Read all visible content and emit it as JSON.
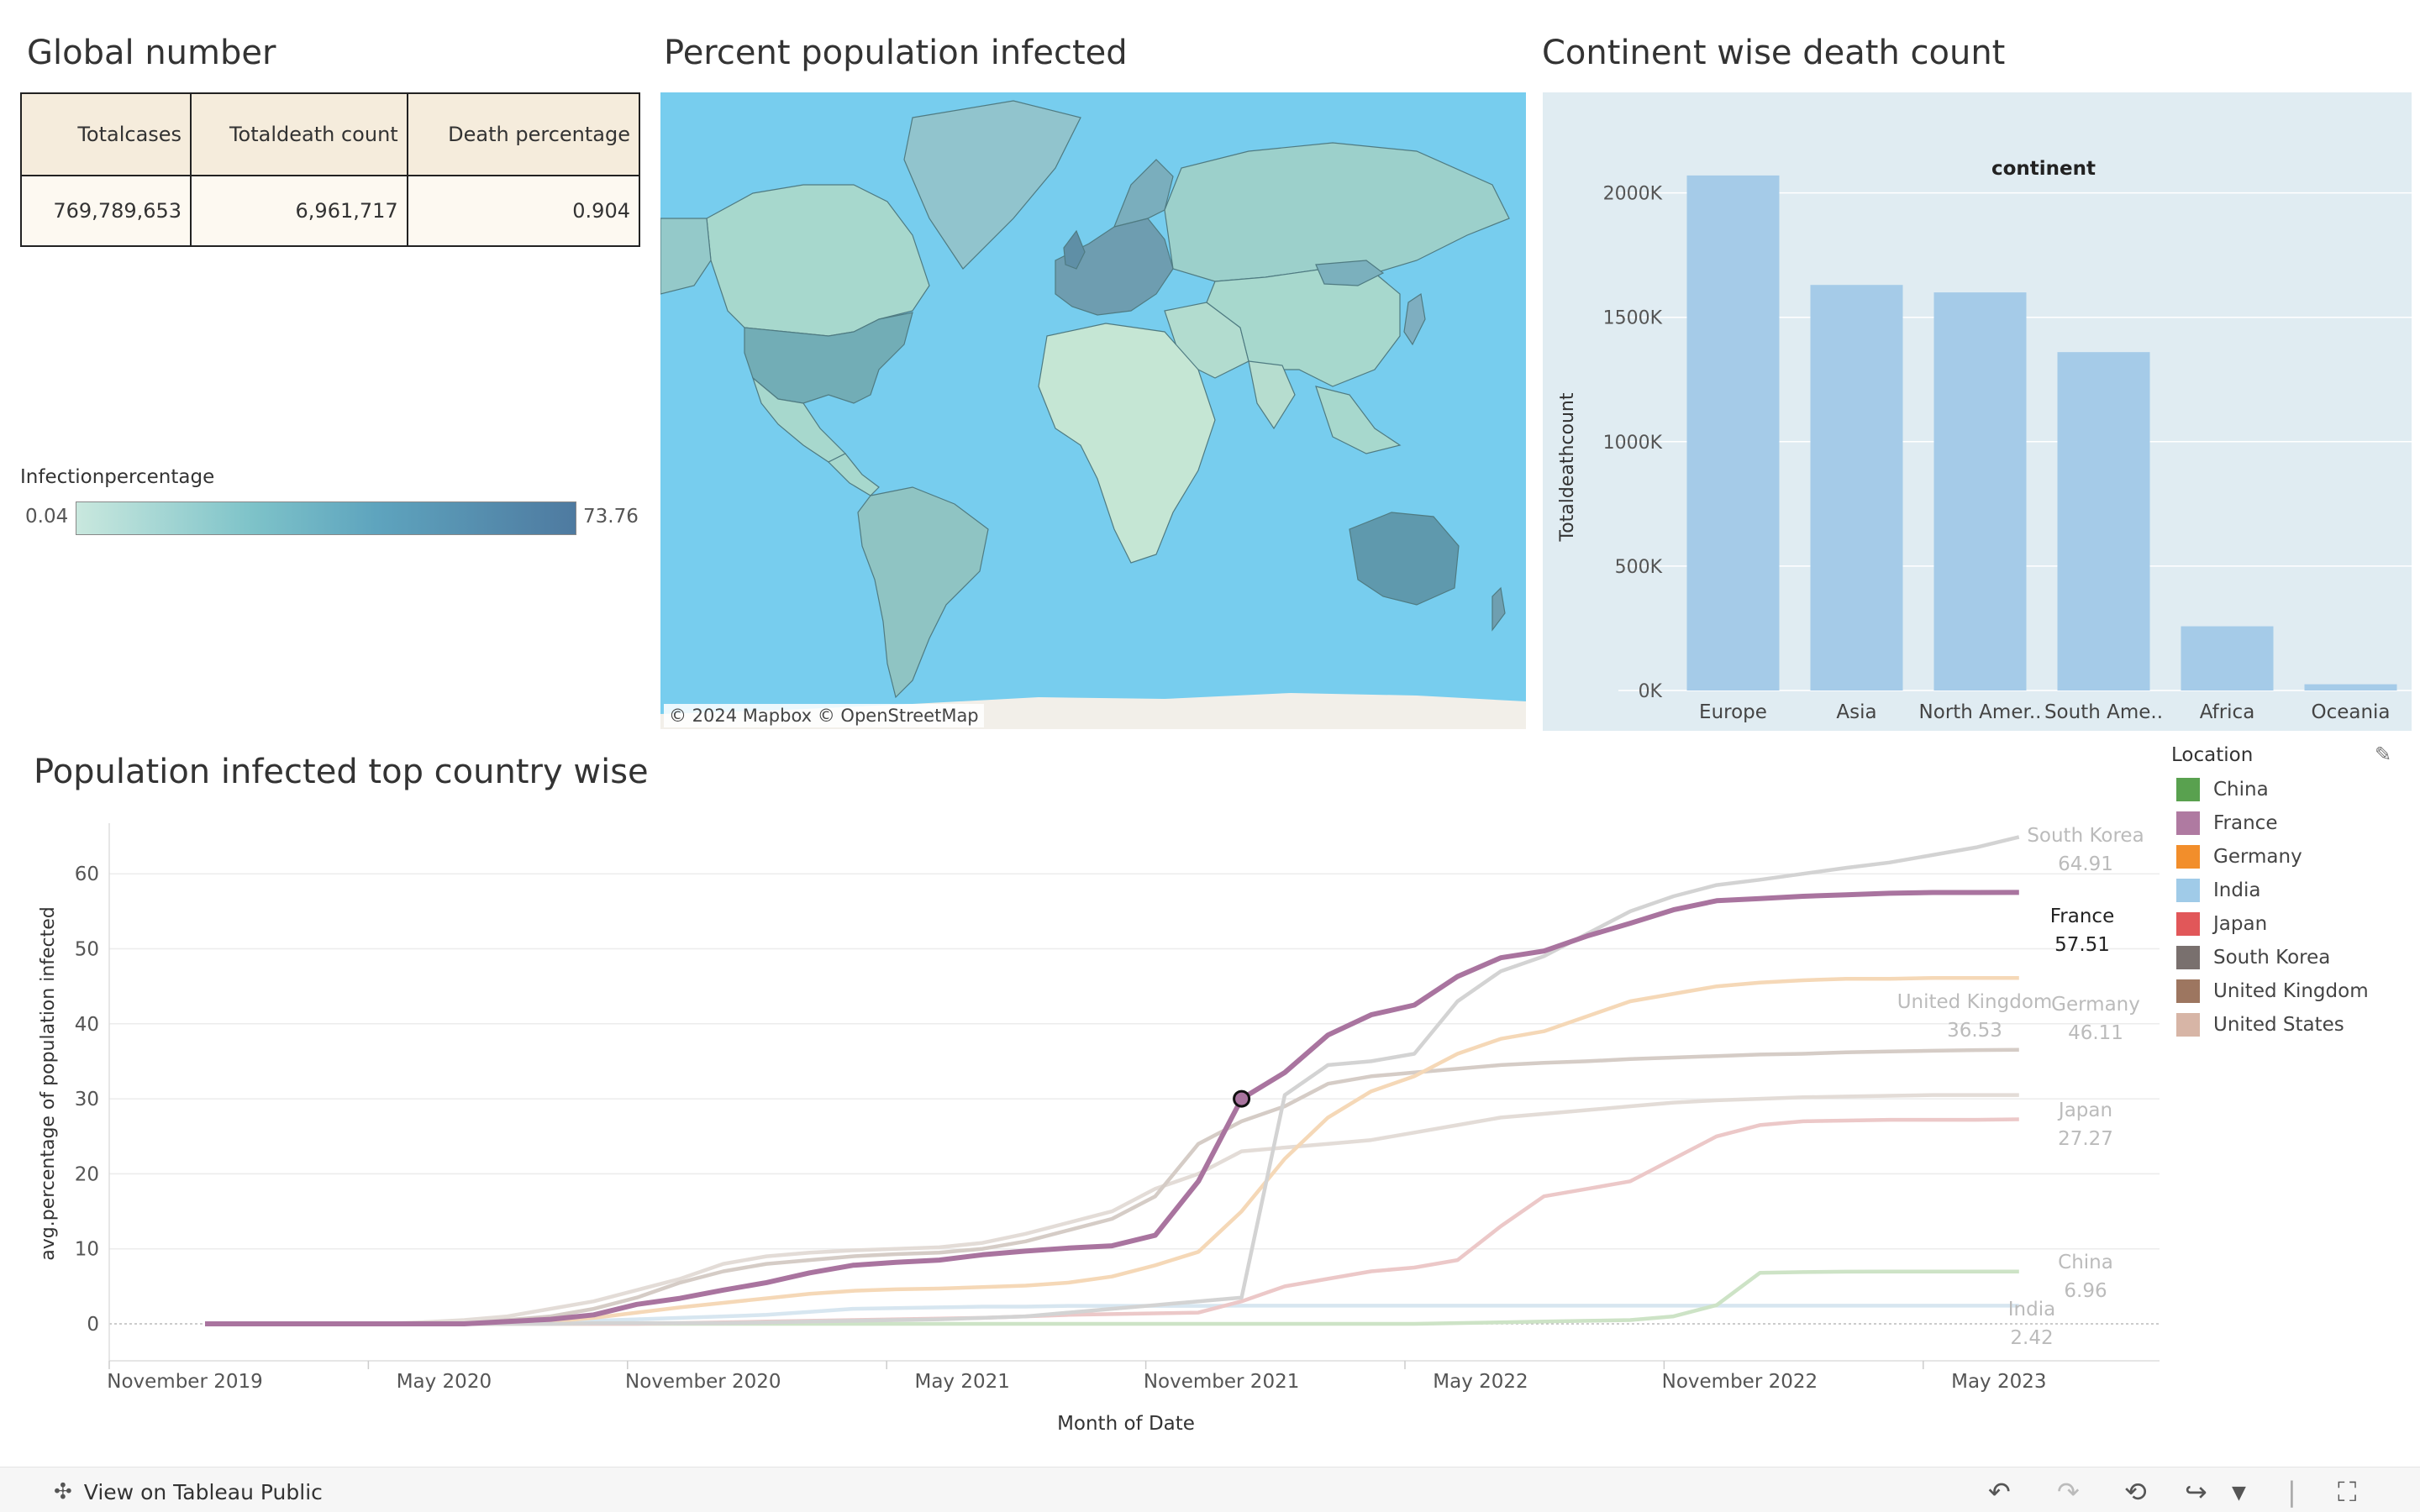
{
  "titles": {
    "global": "Global number",
    "map": "Percent population infected",
    "continent": "Continent wise death count",
    "line": "Population infected top country wise"
  },
  "global_table": {
    "headers": [
      "Totalcases",
      "Totaldeath count",
      "Death percentage"
    ],
    "values": [
      "769,789,653",
      "6,961,717",
      "0.904"
    ]
  },
  "infection_legend": {
    "title": "Infectionpercentage",
    "min": "0.04",
    "max": "73.76"
  },
  "map_attribution": "© 2024 Mapbox  © OpenStreetMap",
  "colors": {
    "ocean": "#77cdee",
    "land": "#a6d6cc",
    "bar": "#a5cbe8",
    "bar_bg": "#e0ecf2",
    "france": "#a9749f"
  },
  "chart_data": [
    {
      "type": "bar",
      "title": "continent",
      "ylabel": "Totaldeathcount",
      "categories": [
        "Europe",
        "Asia",
        "North Amer..",
        "South Ame..",
        "Africa",
        "Oceania"
      ],
      "values": [
        2070000,
        1630000,
        1600000,
        1360000,
        258000,
        25000
      ],
      "yticks": [
        "0K",
        "500K",
        "1000K",
        "1500K",
        "2000K"
      ],
      "ylim": [
        0,
        2100000
      ],
      "grid": true
    },
    {
      "type": "line",
      "xlabel": "Month of Date",
      "ylabel": "avg.percentage of population infected",
      "xticks": [
        "November 2019",
        "May 2020",
        "November 2020",
        "May 2021",
        "November 2021",
        "May 2022",
        "November 2022",
        "May 2023"
      ],
      "yticks": [
        "0",
        "10",
        "20",
        "30",
        "40",
        "50",
        "60"
      ],
      "ylim": [
        0,
        66
      ],
      "x_months": [
        0,
        1,
        2,
        3,
        4,
        5,
        6,
        7,
        8,
        9,
        10,
        11,
        12,
        13,
        14,
        15,
        16,
        17,
        18,
        19,
        20,
        21,
        22,
        23,
        24,
        25,
        26,
        27,
        28,
        29,
        30,
        31,
        32,
        33,
        34,
        35,
        36,
        37,
        38,
        39,
        40,
        41,
        42
      ],
      "series": [
        {
          "name": "France",
          "label": "France",
          "value_label": "57.51",
          "color": "#a9749f",
          "highlighted": true,
          "values": [
            0,
            0,
            0,
            0,
            0,
            0,
            0,
            0.3,
            0.6,
            1.2,
            2.6,
            3.4,
            4.5,
            5.5,
            6.8,
            7.8,
            8.2,
            8.5,
            9.2,
            9.7,
            10.1,
            10.4,
            11.8,
            19,
            30,
            33.5,
            38.5,
            41.2,
            42.5,
            46.3,
            48.8,
            49.7,
            51.7,
            53.4,
            55.2,
            56.4,
            56.7,
            57,
            57.2,
            57.4,
            57.5,
            57.5,
            57.51
          ]
        },
        {
          "name": "South Korea",
          "label": "South Korea",
          "value_label": "64.91",
          "color": "#d3d3d3",
          "values": [
            0,
            0,
            0,
            0,
            0,
            0,
            0,
            0,
            0,
            0.1,
            0.1,
            0.1,
            0.1,
            0.2,
            0.3,
            0.4,
            0.5,
            0.6,
            0.8,
            1,
            1.5,
            2,
            2.5,
            3,
            3.5,
            30.5,
            34.5,
            35,
            36,
            43,
            47,
            49,
            52,
            55,
            57,
            58.5,
            59.2,
            60,
            60.8,
            61.5,
            62.5,
            63.5,
            64.91
          ]
        },
        {
          "name": "Germany",
          "label": "Germany",
          "value_label": "46.11",
          "color": "#f5d8b7",
          "values": [
            0,
            0,
            0,
            0,
            0,
            0,
            0,
            0.1,
            0.3,
            0.8,
            1.5,
            2.2,
            2.8,
            3.4,
            4,
            4.4,
            4.6,
            4.7,
            4.9,
            5.1,
            5.5,
            6.3,
            7.8,
            9.6,
            15,
            22,
            27.5,
            31,
            33,
            36,
            38,
            39,
            41,
            43,
            44,
            45,
            45.5,
            45.8,
            46,
            46,
            46.1,
            46.1,
            46.11
          ]
        },
        {
          "name": "United Kingdom",
          "label": "United Kingdom",
          "value_label": "36.53",
          "color": "#d5ccc6",
          "values": [
            0,
            0,
            0,
            0,
            0,
            0,
            0,
            0.5,
            1,
            2,
            3.5,
            5.5,
            7,
            8,
            8.5,
            9,
            9.3,
            9.5,
            10,
            11,
            12.5,
            14,
            17,
            24,
            27,
            29,
            32,
            33,
            33.5,
            34,
            34.5,
            34.8,
            35,
            35.3,
            35.5,
            35.7,
            35.9,
            36,
            36.2,
            36.3,
            36.4,
            36.5,
            36.53
          ]
        },
        {
          "name": "United States",
          "label": "",
          "value_label": "",
          "color": "#e3dcd7",
          "values": [
            0,
            0,
            0,
            0,
            0,
            0.2,
            0.5,
            1,
            2,
            3,
            4.5,
            6,
            8,
            9,
            9.5,
            9.8,
            10,
            10.2,
            10.8,
            12,
            13.5,
            15,
            18,
            20,
            23,
            23.5,
            24,
            24.5,
            25.5,
            26.5,
            27.5,
            28,
            28.5,
            29,
            29.5,
            29.8,
            30,
            30.2,
            30.3,
            30.4,
            30.5,
            30.5,
            30.5
          ]
        },
        {
          "name": "Japan",
          "label": "Japan",
          "value_label": "27.27",
          "color": "#ecc8c8",
          "values": [
            0,
            0,
            0,
            0,
            0,
            0,
            0,
            0,
            0,
            0,
            0,
            0.1,
            0.2,
            0.3,
            0.4,
            0.5,
            0.6,
            0.7,
            0.8,
            1,
            1.2,
            1.3,
            1.4,
            1.5,
            3,
            5,
            6,
            7,
            7.5,
            8.5,
            13,
            17,
            18,
            19,
            22,
            25,
            26.5,
            27,
            27.1,
            27.2,
            27.2,
            27.2,
            27.27
          ]
        },
        {
          "name": "China",
          "label": "China",
          "value_label": "6.96",
          "color": "#cde3c6",
          "values": [
            0,
            0,
            0,
            0,
            0,
            0,
            0,
            0,
            0,
            0,
            0,
            0,
            0,
            0,
            0,
            0,
            0,
            0,
            0,
            0,
            0,
            0,
            0,
            0,
            0,
            0,
            0,
            0,
            0,
            0.1,
            0.2,
            0.3,
            0.4,
            0.5,
            1,
            2.5,
            6.8,
            6.9,
            6.95,
            6.96,
            6.96,
            6.96,
            6.96
          ]
        },
        {
          "name": "India",
          "label": "India",
          "value_label": "2.42",
          "color": "#d7e6f0",
          "values": [
            0,
            0,
            0,
            0,
            0,
            0,
            0,
            0,
            0.2,
            0.4,
            0.6,
            0.8,
            1,
            1.2,
            1.6,
            2,
            2.1,
            2.2,
            2.3,
            2.3,
            2.4,
            2.4,
            2.4,
            2.4,
            2.42,
            2.42,
            2.42,
            2.42,
            2.42,
            2.42,
            2.42,
            2.42,
            2.42,
            2.42,
            2.42,
            2.42,
            2.42,
            2.42,
            2.42,
            2.42,
            2.42,
            2.42,
            2.42
          ]
        }
      ],
      "highlight_point": {
        "series": "France",
        "x_month": 24,
        "y": 30
      }
    }
  ],
  "location_legend": {
    "title": "Location",
    "items": [
      {
        "name": "China",
        "color": "#59a14f"
      },
      {
        "name": "France",
        "color": "#af7aa1"
      },
      {
        "name": "Germany",
        "color": "#f28e2b"
      },
      {
        "name": "India",
        "color": "#a0cbe8"
      },
      {
        "name": "Japan",
        "color": "#e15759"
      },
      {
        "name": "South Korea",
        "color": "#79706e"
      },
      {
        "name": "United Kingdom",
        "color": "#9d7660"
      },
      {
        "name": "United States",
        "color": "#d7b5a6"
      }
    ]
  },
  "footer": {
    "link": "View on Tableau Public"
  }
}
